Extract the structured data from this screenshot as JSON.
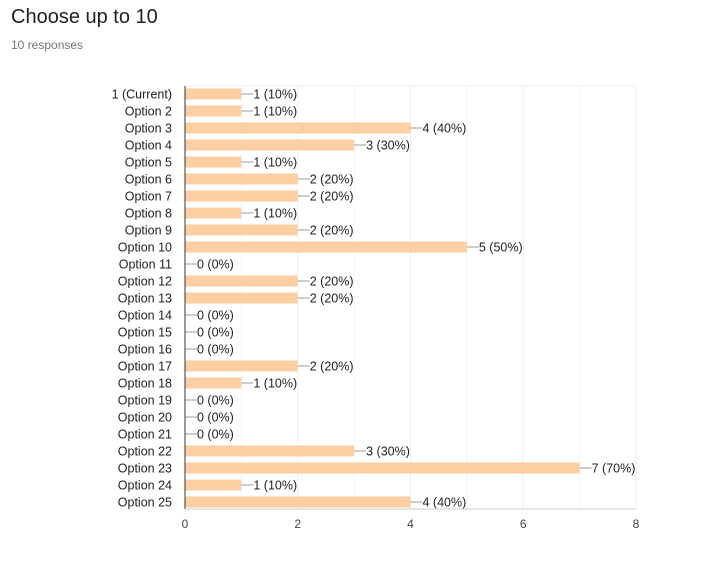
{
  "header": {
    "title": "Choose up to 10",
    "subtitle": "10 responses"
  },
  "colors": {
    "bar": "#fdcfa3",
    "leader": "#9e9e9e",
    "grid": "#eeeeee",
    "axis": "#333333",
    "text": "#222222",
    "tick_text": "#444444"
  },
  "chart_data": {
    "type": "bar",
    "orientation": "horizontal",
    "title": "",
    "xlabel": "",
    "ylabel": "",
    "xlim": [
      0,
      8
    ],
    "x_ticks": [
      0,
      2,
      4,
      6,
      8
    ],
    "grid": true,
    "total_responses": 10,
    "categories": [
      "1 (Current)",
      "Option 2",
      "Option 3",
      "Option 4",
      "Option 5",
      "Option 6",
      "Option 7",
      "Option 8",
      "Option 9",
      "Option 10",
      "Option 11",
      "Option 12",
      "Option 13",
      "Option 14",
      "Option 15",
      "Option 16",
      "Option 17",
      "Option 18",
      "Option 19",
      "Option 20",
      "Option 21",
      "Option 22",
      "Option 23",
      "Option 24",
      "Option 25"
    ],
    "values": [
      1,
      1,
      4,
      3,
      1,
      2,
      2,
      1,
      2,
      5,
      0,
      2,
      2,
      0,
      0,
      0,
      2,
      1,
      0,
      0,
      0,
      3,
      7,
      1,
      4
    ],
    "data_labels": [
      "1 (10%)",
      "1 (10%)",
      "4 (40%)",
      "3 (30%)",
      "1 (10%)",
      "2 (20%)",
      "2 (20%)",
      "1 (10%)",
      "2 (20%)",
      "5 (50%)",
      "0 (0%)",
      "2 (20%)",
      "2 (20%)",
      "0 (0%)",
      "0 (0%)",
      "0 (0%)",
      "2 (20%)",
      "1 (10%)",
      "0 (0%)",
      "0 (0%)",
      "0 (0%)",
      "3 (30%)",
      "7 (70%)",
      "1 (10%)",
      "4 (40%)"
    ]
  }
}
